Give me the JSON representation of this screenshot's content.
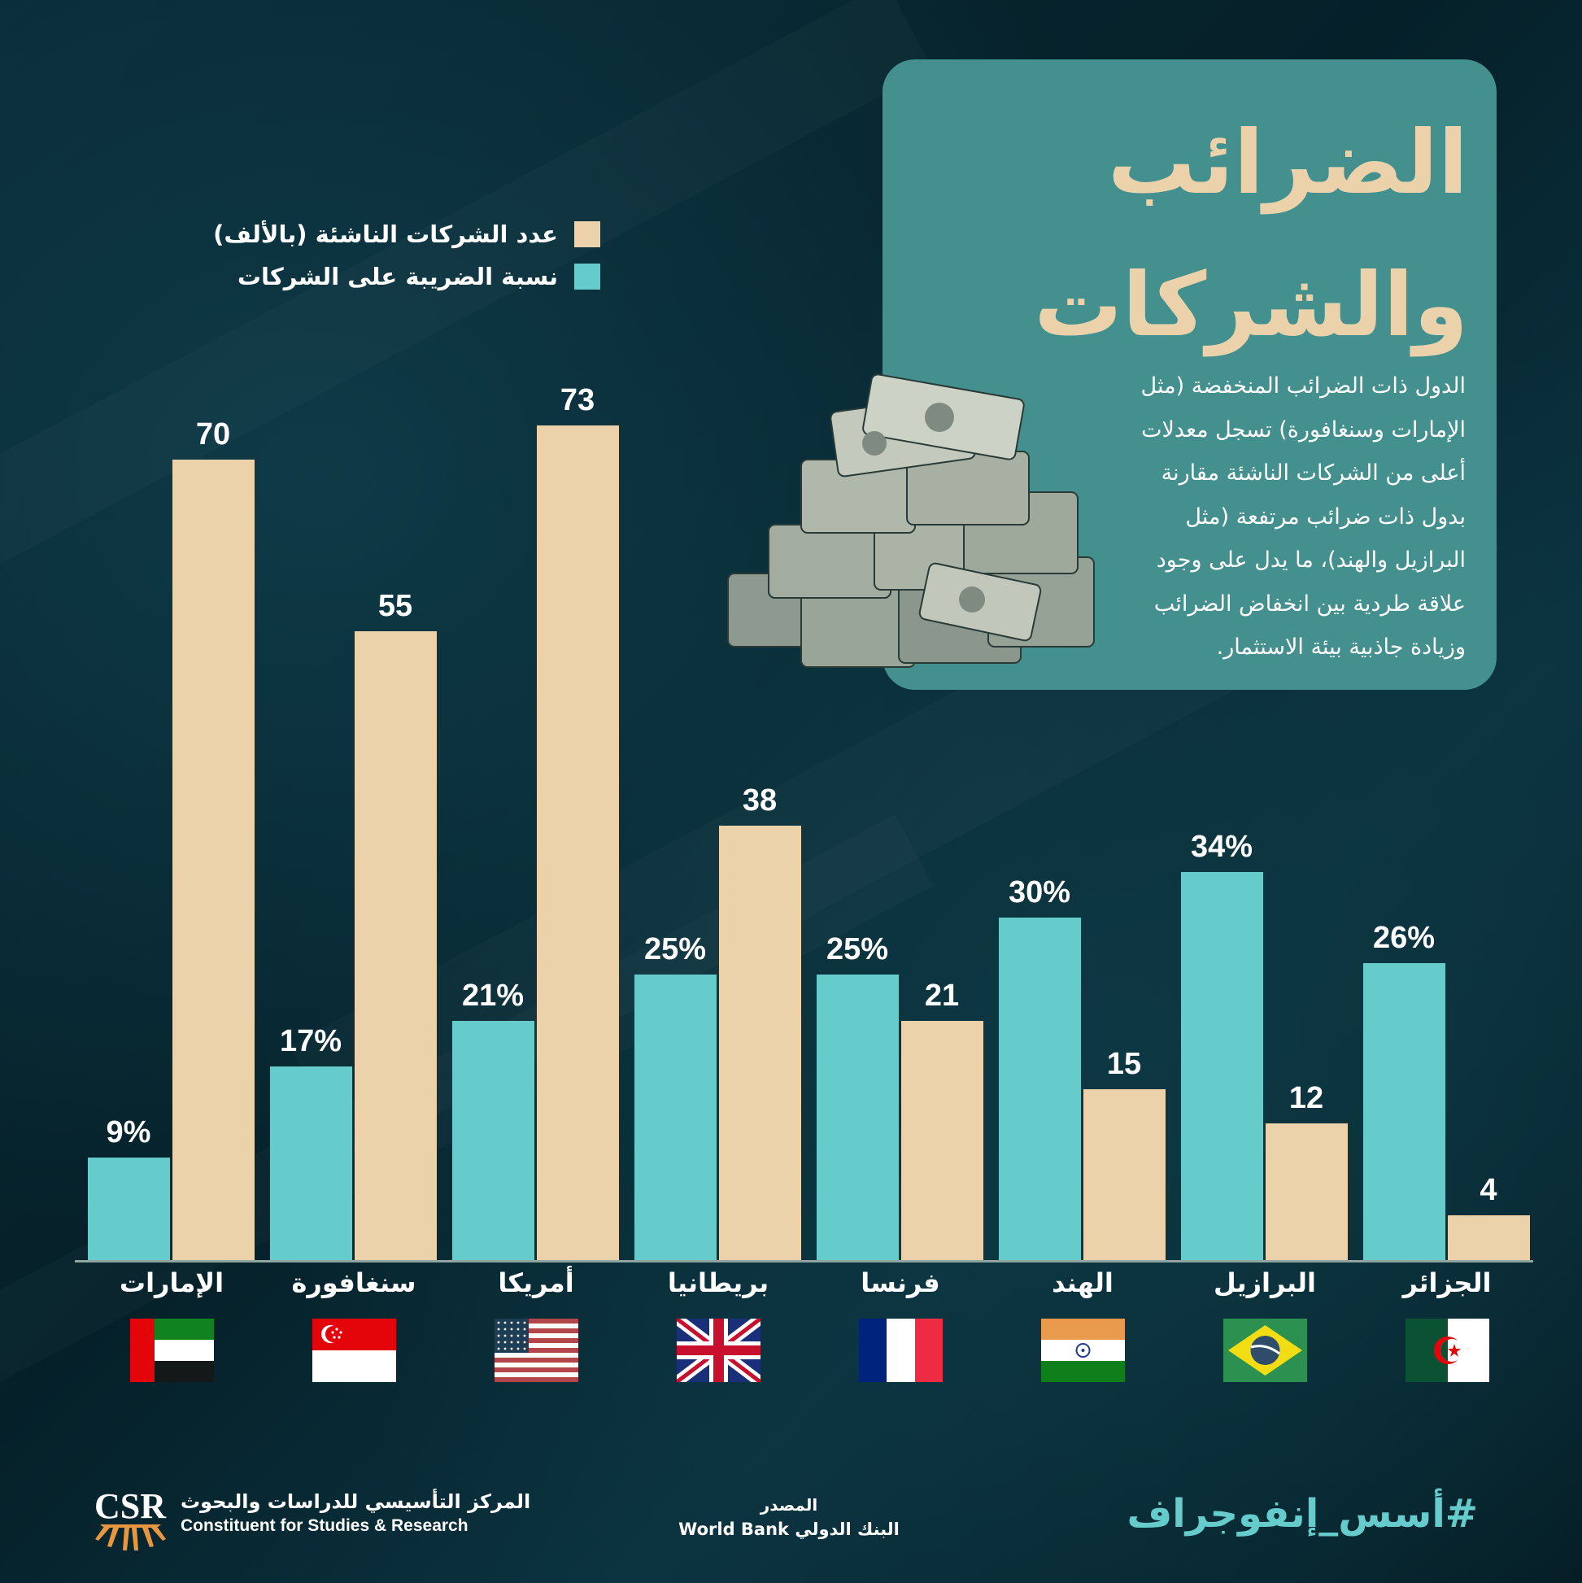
{
  "title": {
    "line1": "الضرائب",
    "line2": "والشركات"
  },
  "description": "الدول ذات الضرائب المنخفضة (مثل الإمارات وسنغافورة) تسجل معدلات أعلى من الشركات الناشئة مقارنة بدول ذات ضرائب مرتفعة (مثل البرازيل والهند)، ما يدل على وجود علاقة طردية بين انخفاض الضرائب وزيادة جاذبية بيئة الاستثمار.",
  "legend": [
    {
      "label": "عدد الشركات الناشئة (بالألف)",
      "color": "#ebd2aa"
    },
    {
      "label": "نسبة الضريبة على الشركات",
      "color": "#65cccb"
    }
  ],
  "colors": {
    "background": "#052029",
    "card": "#44908f",
    "title": "#ecd2aa",
    "teal": "#65cccb",
    "beige": "#ebd2aa"
  },
  "countries": [
    {
      "name": "الإمارات",
      "tax_label": "9%",
      "startups_label": "70",
      "flag": "uae-flag"
    },
    {
      "name": "سنغافورة",
      "tax_label": "17%",
      "startups_label": "55",
      "flag": "singapore-flag"
    },
    {
      "name": "أمريكا",
      "tax_label": "21%",
      "startups_label": "73",
      "flag": "usa-flag"
    },
    {
      "name": "بريطانيا",
      "tax_label": "25%",
      "startups_label": "38",
      "flag": "uk-flag"
    },
    {
      "name": "فرنسا",
      "tax_label": "25%",
      "startups_label": "21",
      "flag": "france-flag"
    },
    {
      "name": "الهند",
      "tax_label": "30%",
      "startups_label": "15",
      "flag": "india-flag"
    },
    {
      "name": "البرازيل",
      "tax_label": "34%",
      "startups_label": "12",
      "flag": "brazil-flag"
    },
    {
      "name": "الجزائر",
      "tax_label": "26%",
      "startups_label": "4",
      "flag": "algeria-flag"
    }
  ],
  "chart_data": {
    "type": "bar",
    "title": "الضرائب والشركات",
    "categories": [
      "الإمارات",
      "سنغافورة",
      "أمريكا",
      "بريطانيا",
      "فرنسا",
      "الهند",
      "البرازيل",
      "الجزائر"
    ],
    "series": [
      {
        "name": "نسبة الضريبة على الشركات",
        "unit": "%",
        "color": "#65cccb",
        "values": [
          9,
          17,
          21,
          25,
          25,
          30,
          34,
          26
        ]
      },
      {
        "name": "عدد الشركات الناشئة (بالألف)",
        "unit": "thousand",
        "color": "#ebd2aa",
        "values": [
          70,
          55,
          73,
          38,
          21,
          15,
          12,
          4
        ]
      }
    ],
    "xlabel": "",
    "ylabel": "",
    "grid": false,
    "legend_position": "top-left",
    "data_labels": true
  },
  "footer": {
    "logo_text": "CSR",
    "org_ar": "المركز التأسيسي للدراسات والبحوث",
    "org_en": "Constituent for Studies & Research",
    "source_label": "المصدر",
    "source_value": "البنك الدولي World Bank",
    "hashtag": "#أسس_إنفوجراف"
  }
}
